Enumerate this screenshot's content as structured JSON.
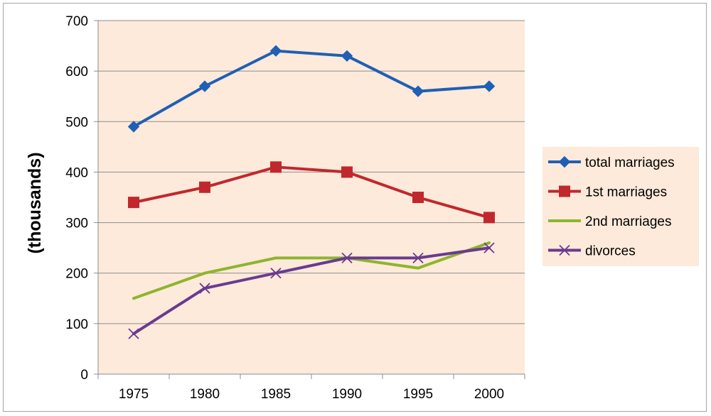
{
  "chart_data": {
    "type": "line",
    "title": "",
    "xlabel": "",
    "ylabel": "(thousands)",
    "categories": [
      "1975",
      "1980",
      "1985",
      "1990",
      "1995",
      "2000"
    ],
    "ylim": [
      0,
      700
    ],
    "yticks": [
      0,
      100,
      200,
      300,
      400,
      500,
      600,
      700
    ],
    "grid": true,
    "legend_position": "right",
    "plot_background": "#fdeada",
    "series": [
      {
        "name": "total marriages",
        "values": [
          490,
          570,
          640,
          630,
          560,
          570
        ],
        "color": "#1f5fb4",
        "marker": "diamond"
      },
      {
        "name": "1st marriages",
        "values": [
          340,
          370,
          410,
          400,
          350,
          310
        ],
        "color": "#c0282d",
        "marker": "square"
      },
      {
        "name": "2nd marriages",
        "values": [
          150,
          200,
          230,
          230,
          210,
          260
        ],
        "color": "#8db52e",
        "marker": "none"
      },
      {
        "name": "divorces",
        "values": [
          80,
          170,
          200,
          230,
          230,
          250
        ],
        "color": "#6a3a8f",
        "marker": "x"
      }
    ]
  }
}
